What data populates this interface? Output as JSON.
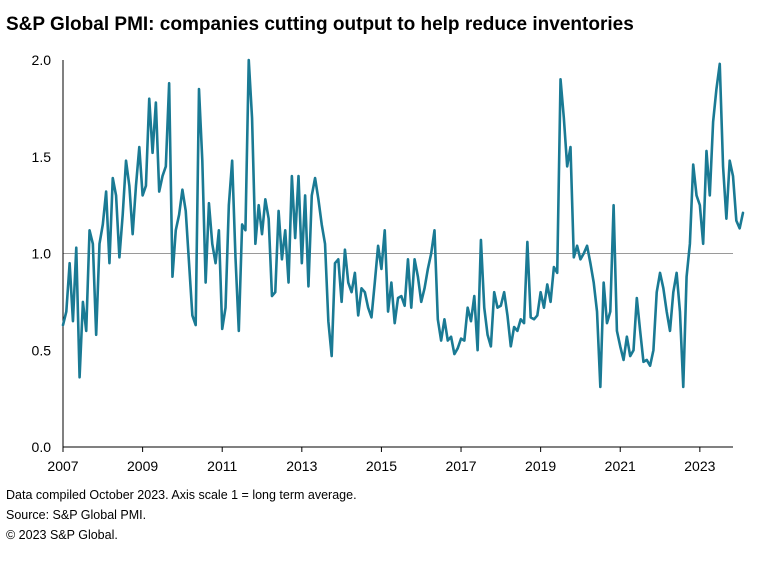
{
  "title": "S&P Global PMI: companies cutting output to help reduce inventories",
  "notes": [
    "Data compiled October 2023. Axis scale 1 = long term average.",
    "Source: S&P Global PMI.",
    "© 2023 S&P Global."
  ],
  "colors": {
    "line": "#1a7a94",
    "axis": "#000000",
    "refline": "#9a9a9a"
  },
  "chart_data": {
    "type": "line",
    "title": "S&P Global PMI: companies cutting output to help reduce inventories",
    "xlabel": "",
    "ylabel": "",
    "xlim": [
      2007.0,
      2023.833
    ],
    "ylim": [
      0,
      2.0
    ],
    "x_ticks": [
      2007,
      2009,
      2011,
      2013,
      2015,
      2017,
      2019,
      2021,
      2023
    ],
    "y_ticks": [
      0.0,
      0.5,
      1.0,
      1.5,
      2.0
    ],
    "y_tick_labels": [
      "0.0",
      "0.5",
      "1.0",
      "1.5",
      "2.0"
    ],
    "reference_line": 1.0,
    "grid": false,
    "x_start": 2007.0,
    "x_step_months": 1,
    "series": [
      {
        "values": [
          0.63,
          0.7,
          0.95,
          0.65,
          1.03,
          0.36,
          0.75,
          0.6,
          1.12,
          1.05,
          0.58,
          1.05,
          1.15,
          1.32,
          0.95,
          1.39,
          1.3,
          0.98,
          1.2,
          1.48,
          1.35,
          1.1,
          1.35,
          1.55,
          1.3,
          1.35,
          1.8,
          1.52,
          1.78,
          1.32,
          1.4,
          1.45,
          1.88,
          0.88,
          1.12,
          1.2,
          1.33,
          1.22,
          0.95,
          0.68,
          0.63,
          1.85,
          1.48,
          0.85,
          1.26,
          1.05,
          0.95,
          1.12,
          0.61,
          0.72,
          1.25,
          1.48,
          0.98,
          0.6,
          1.15,
          1.12,
          2.0,
          1.7,
          1.05,
          1.25,
          1.1,
          1.28,
          1.18,
          0.78,
          0.8,
          1.22,
          0.97,
          1.12,
          0.85,
          1.4,
          1.08,
          1.4,
          0.95,
          1.3,
          0.83,
          1.3,
          1.39,
          1.28,
          1.15,
          1.05,
          0.65,
          0.47,
          0.95,
          0.97,
          0.75,
          1.02,
          0.85,
          0.8,
          0.9,
          0.68,
          0.82,
          0.8,
          0.72,
          0.67,
          0.85,
          1.04,
          0.92,
          1.12,
          0.7,
          0.85,
          0.64,
          0.77,
          0.78,
          0.73,
          0.97,
          0.72,
          0.97,
          0.88,
          0.75,
          0.82,
          0.92,
          1.0,
          1.12,
          0.66,
          0.55,
          0.66,
          0.55,
          0.57,
          0.48,
          0.51,
          0.56,
          0.55,
          0.72,
          0.65,
          0.78,
          0.5,
          1.07,
          0.72,
          0.58,
          0.52,
          0.8,
          0.72,
          0.73,
          0.8,
          0.68,
          0.52,
          0.62,
          0.6,
          0.66,
          0.64,
          1.06,
          0.67,
          0.66,
          0.68,
          0.8,
          0.72,
          0.84,
          0.75,
          0.93,
          0.9,
          1.9,
          1.7,
          1.45,
          1.55,
          0.98,
          1.04,
          0.97,
          1.0,
          1.04,
          0.95,
          0.85,
          0.7,
          0.31,
          0.85,
          0.64,
          0.7,
          1.25,
          0.6,
          0.52,
          0.45,
          0.57,
          0.47,
          0.5,
          0.77,
          0.6,
          0.44,
          0.45,
          0.42,
          0.5,
          0.8,
          0.9,
          0.82,
          0.7,
          0.6,
          0.8,
          0.9,
          0.7,
          0.31,
          0.88,
          1.05,
          1.46,
          1.3,
          1.25,
          1.05,
          1.53,
          1.3,
          1.68,
          1.85,
          1.98,
          1.45,
          1.18,
          1.48,
          1.4,
          1.17,
          1.13,
          1.21
        ]
      }
    ]
  }
}
